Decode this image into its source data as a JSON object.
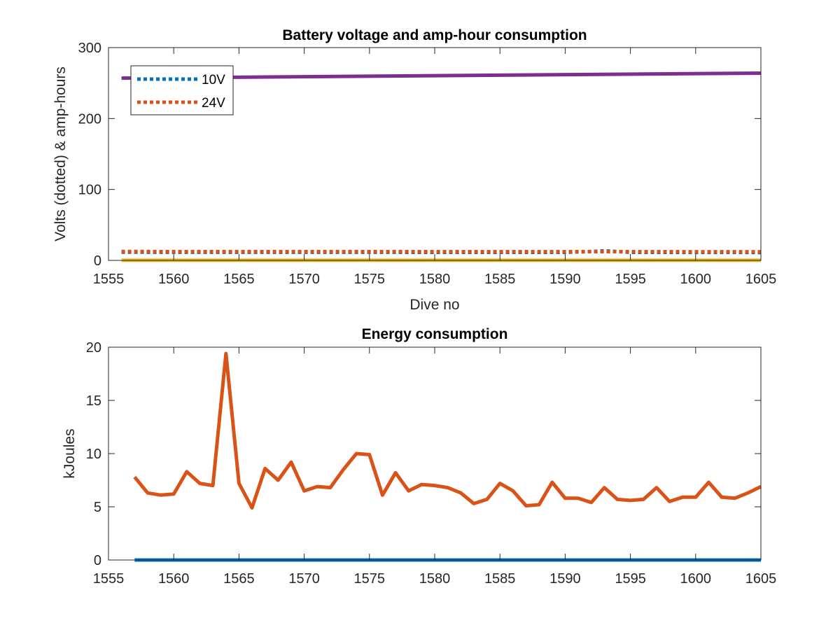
{
  "chart_data": [
    {
      "type": "line",
      "title": "Battery voltage and amp-hour consumption",
      "xlabel": "Dive no",
      "ylabel": "Volts (dotted) & amp-hours",
      "xlim": [
        1555,
        1605
      ],
      "ylim": [
        0,
        300
      ],
      "xticks": [
        1555,
        1560,
        1565,
        1570,
        1575,
        1580,
        1585,
        1590,
        1595,
        1600,
        1605
      ],
      "yticks": [
        0,
        100,
        200,
        300
      ],
      "grid": false,
      "legend": {
        "placement": "top-left",
        "entries": [
          "10V",
          "24V"
        ]
      },
      "series": [
        {
          "name": "10V",
          "style": "dotted",
          "color": "#0072BD",
          "x": [
            1556,
            1570,
            1590,
            1592,
            1593,
            1594,
            1595,
            1605
          ],
          "y": [
            11.5,
            11.4,
            11.3,
            12.5,
            13.5,
            12.5,
            11.3,
            11.2
          ]
        },
        {
          "name": "24V",
          "style": "dotted",
          "color": "#D95319",
          "x": [
            1556,
            1605
          ],
          "y": [
            12.5,
            12.2
          ]
        },
        {
          "style": "solid",
          "color": "#7E2F8E",
          "x": [
            1556,
            1605
          ],
          "y": [
            257,
            264
          ]
        },
        {
          "style": "solid",
          "color": "#EDB120",
          "x": [
            1556,
            1605
          ],
          "y": [
            0.3,
            0.3
          ]
        }
      ]
    },
    {
      "type": "line",
      "title": "Energy consumption",
      "xlabel": "",
      "ylabel": "kJoules",
      "xlim": [
        1555,
        1605
      ],
      "ylim": [
        0,
        20
      ],
      "xticks": [
        1555,
        1560,
        1565,
        1570,
        1575,
        1580,
        1585,
        1590,
        1595,
        1600,
        1605
      ],
      "yticks": [
        0,
        5,
        10,
        15,
        20
      ],
      "grid": false,
      "series": [
        {
          "style": "solid",
          "color": "#0072BD",
          "x": [
            1557,
            1605
          ],
          "y": [
            0,
            0
          ]
        },
        {
          "style": "solid",
          "color": "#D95319",
          "x": [
            1557,
            1558,
            1559,
            1560,
            1561,
            1562,
            1563,
            1564,
            1565,
            1566,
            1567,
            1568,
            1569,
            1570,
            1571,
            1572,
            1573,
            1574,
            1575,
            1576,
            1577,
            1578,
            1579,
            1580,
            1581,
            1582,
            1583,
            1584,
            1585,
            1586,
            1587,
            1588,
            1589,
            1590,
            1591,
            1592,
            1593,
            1594,
            1595,
            1596,
            1597,
            1598,
            1599,
            1600,
            1601,
            1602,
            1603,
            1604,
            1605
          ],
          "y": [
            7.8,
            6.3,
            6.1,
            6.2,
            8.3,
            7.2,
            7.0,
            19.4,
            7.2,
            4.9,
            8.6,
            7.5,
            9.2,
            6.5,
            6.9,
            6.8,
            8.5,
            10.0,
            9.9,
            6.1,
            8.2,
            6.5,
            7.1,
            7.0,
            6.8,
            6.3,
            5.3,
            5.7,
            7.2,
            6.5,
            5.1,
            5.2,
            7.3,
            5.8,
            5.8,
            5.4,
            6.8,
            5.7,
            5.6,
            5.7,
            6.8,
            5.5,
            5.9,
            5.9,
            7.3,
            5.9,
            5.8,
            6.3,
            6.9
          ]
        }
      ]
    }
  ]
}
